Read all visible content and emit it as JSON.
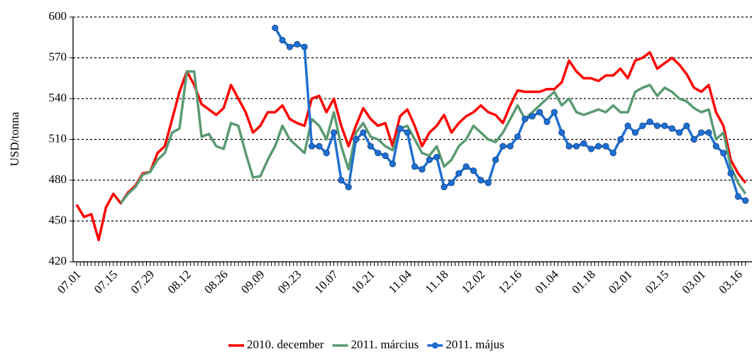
{
  "chart_data": {
    "type": "line",
    "y_label": "USD/tonna",
    "categories": [
      "07.01",
      null,
      null,
      null,
      null,
      "07.15",
      null,
      null,
      null,
      null,
      "07.29",
      null,
      null,
      null,
      null,
      "08.12",
      null,
      null,
      null,
      null,
      "08.26",
      null,
      null,
      null,
      null,
      "09.09",
      null,
      null,
      null,
      null,
      "09.23",
      null,
      null,
      null,
      null,
      "10.07",
      null,
      null,
      null,
      null,
      "10.21",
      null,
      null,
      null,
      null,
      "11.04",
      null,
      null,
      null,
      null,
      "11.18",
      null,
      null,
      null,
      null,
      "12.02",
      null,
      null,
      null,
      null,
      "12.16",
      null,
      null,
      null,
      null,
      "01.04",
      null,
      null,
      null,
      null,
      "01.18",
      null,
      null,
      null,
      null,
      "02.01",
      null,
      null,
      null,
      null,
      "02.15",
      null,
      null,
      null,
      null,
      "03.01",
      null,
      null,
      null,
      null,
      "03.16",
      null
    ],
    "series": [
      {
        "name": "2010. december",
        "color": "#ff0000",
        "values": [
          462,
          453,
          455,
          436,
          460,
          470,
          463,
          471,
          476,
          485,
          486,
          500,
          505,
          525,
          545,
          560,
          550,
          536,
          532,
          528,
          533,
          550,
          540,
          530,
          515,
          520,
          530,
          530,
          535,
          525,
          522,
          520,
          540,
          542,
          530,
          540,
          520,
          505,
          520,
          533,
          525,
          520,
          522,
          505,
          527,
          532,
          520,
          505,
          515,
          520,
          528,
          515,
          522,
          527,
          530,
          535,
          530,
          528,
          522,
          535,
          546,
          545,
          545,
          545,
          547,
          547,
          552,
          568,
          560,
          555,
          555,
          553,
          557,
          557,
          562,
          555,
          568,
          570,
          574,
          562,
          566,
          570,
          565,
          558,
          548,
          545,
          550,
          530,
          520,
          495,
          485,
          478
        ]
      },
      {
        "name": "2011. március",
        "color": "#5a9a72",
        "values": [
          null,
          null,
          null,
          null,
          null,
          null,
          463,
          470,
          475,
          484,
          486,
          495,
          500,
          515,
          518,
          560,
          560,
          512,
          514,
          505,
          503,
          522,
          520,
          500,
          482,
          483,
          495,
          505,
          520,
          510,
          505,
          500,
          525,
          520,
          510,
          530,
          505,
          488,
          515,
          522,
          512,
          510,
          505,
          502,
          518,
          520,
          510,
          500,
          498,
          505,
          490,
          495,
          505,
          510,
          520,
          515,
          510,
          508,
          515,
          525,
          535,
          525,
          530,
          535,
          540,
          545,
          535,
          540,
          530,
          528,
          530,
          532,
          530,
          535,
          530,
          530,
          545,
          548,
          550,
          542,
          548,
          545,
          540,
          538,
          533,
          530,
          532,
          510,
          515,
          490,
          478,
          470
        ]
      },
      {
        "name": "2011. május",
        "color": "#1f6fd0",
        "marker": "circle",
        "values": [
          null,
          null,
          null,
          null,
          null,
          null,
          null,
          null,
          null,
          null,
          null,
          null,
          null,
          null,
          null,
          null,
          null,
          null,
          null,
          null,
          null,
          null,
          null,
          null,
          null,
          null,
          null,
          592,
          583,
          578,
          580,
          578,
          505,
          505,
          500,
          515,
          480,
          475,
          510,
          515,
          505,
          500,
          498,
          492,
          518,
          515,
          490,
          488,
          495,
          497,
          475,
          478,
          485,
          490,
          487,
          480,
          478,
          495,
          505,
          505,
          512,
          525,
          527,
          530,
          523,
          530,
          515,
          505,
          505,
          507,
          503,
          505,
          505,
          500,
          510,
          520,
          515,
          520,
          523,
          520,
          520,
          518,
          515,
          520,
          510,
          515,
          515,
          505,
          500,
          485,
          468,
          465
        ]
      }
    ],
    "ylim": [
      420,
      600
    ],
    "yticks": [
      420,
      450,
      480,
      510,
      540,
      570,
      600
    ],
    "grid": true,
    "legend": "bottom"
  }
}
